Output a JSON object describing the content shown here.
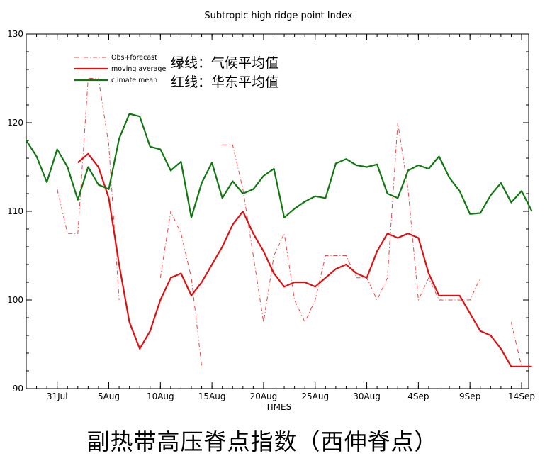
{
  "chart_data": {
    "type": "line",
    "title": "Subtropic high ridge point Index",
    "xlabel": "TIMES",
    "ylabel": "",
    "ylim": [
      90,
      130
    ],
    "yticks": [
      90,
      100,
      110,
      120,
      130
    ],
    "xlim": [
      0,
      48
    ],
    "xticks": [
      {
        "day": 3,
        "label": "31Jul"
      },
      {
        "day": 8,
        "label": "5Aug"
      },
      {
        "day": 13,
        "label": "10Aug"
      },
      {
        "day": 18,
        "label": "15Aug"
      },
      {
        "day": 23,
        "label": "20Aug"
      },
      {
        "day": 28,
        "label": "25Aug"
      },
      {
        "day": 33,
        "label": "30Aug"
      },
      {
        "day": 38,
        "label": "4Sep"
      },
      {
        "day": 43,
        "label": "9Sep"
      },
      {
        "day": 48,
        "label": "14Sep"
      }
    ],
    "legend_position": "top-left",
    "series": [
      {
        "name": "Obs+forecast",
        "color": "#ee4444",
        "style": "dash-dot",
        "points": [
          [
            3,
            112.5
          ],
          [
            4,
            107.5
          ],
          [
            5,
            107.5
          ],
          [
            6,
            125
          ],
          [
            7,
            125
          ],
          [
            8,
            117.5
          ],
          [
            9,
            100
          ],
          [
            10,
            null
          ],
          [
            11,
            null
          ],
          [
            12,
            null
          ],
          [
            13,
            102.5
          ],
          [
            14,
            110
          ],
          [
            15,
            107.5
          ],
          [
            16,
            102.5
          ],
          [
            17,
            92.5
          ],
          [
            18,
            null
          ],
          [
            19,
            117.5
          ],
          [
            20,
            117.5
          ],
          [
            21,
            112.5
          ],
          [
            22,
            105
          ],
          [
            23,
            97.5
          ],
          [
            24,
            105
          ],
          [
            25,
            107.5
          ],
          [
            26,
            100
          ],
          [
            27,
            97.5
          ],
          [
            28,
            100
          ],
          [
            29,
            105
          ],
          [
            30,
            105
          ],
          [
            31,
            105
          ],
          [
            32,
            102.5
          ],
          [
            33,
            102.5
          ],
          [
            34,
            100
          ],
          [
            35,
            102.5
          ],
          [
            36,
            120
          ],
          [
            37,
            112.5
          ],
          [
            38,
            100
          ],
          [
            39,
            102.5
          ],
          [
            40,
            100
          ],
          [
            41,
            100
          ],
          [
            42,
            100
          ],
          [
            43,
            100
          ],
          [
            44,
            102.5
          ],
          [
            45,
            null
          ],
          [
            46,
            null
          ],
          [
            47,
            97.5
          ],
          [
            48,
            92.5
          ]
        ]
      },
      {
        "name": "moving average",
        "color": "#dd1111",
        "style": "solid",
        "points": [
          [
            5,
            115.5
          ],
          [
            6,
            116.5
          ],
          [
            7,
            115
          ],
          [
            8,
            111.5
          ],
          [
            9,
            104
          ],
          [
            10,
            97.5
          ],
          [
            11,
            94.5
          ],
          [
            12,
            96.5
          ],
          [
            13,
            100
          ],
          [
            14,
            102.5
          ],
          [
            15,
            103
          ],
          [
            16,
            100.5
          ],
          [
            17,
            102
          ],
          [
            18,
            104
          ],
          [
            19,
            106
          ],
          [
            20,
            108.5
          ],
          [
            21,
            110
          ],
          [
            22,
            107.5
          ],
          [
            23,
            105.5
          ],
          [
            24,
            103
          ],
          [
            25,
            101.5
          ],
          [
            26,
            102
          ],
          [
            27,
            102
          ],
          [
            28,
            101.5
          ],
          [
            29,
            102.5
          ],
          [
            30,
            103.5
          ],
          [
            31,
            104
          ],
          [
            32,
            103
          ],
          [
            33,
            102.5
          ],
          [
            34,
            105.5
          ],
          [
            35,
            107.5
          ],
          [
            36,
            107
          ],
          [
            37,
            107.5
          ],
          [
            38,
            107
          ],
          [
            39,
            103
          ],
          [
            40,
            100.5
          ],
          [
            41,
            100.5
          ],
          [
            42,
            100.5
          ],
          [
            43,
            98.5
          ],
          [
            44,
            96.5
          ],
          [
            45,
            96
          ],
          [
            46,
            94.5
          ],
          [
            47,
            92.5
          ],
          [
            48,
            92.5
          ],
          [
            49,
            92.5
          ]
        ]
      },
      {
        "name": "climate mean",
        "color": "#117711",
        "style": "solid",
        "points": [
          [
            0,
            118
          ],
          [
            1,
            116.2
          ],
          [
            2,
            113.3
          ],
          [
            3,
            117
          ],
          [
            4,
            115
          ],
          [
            5,
            111.3
          ],
          [
            6,
            115
          ],
          [
            7,
            113
          ],
          [
            8,
            112.5
          ],
          [
            9,
            118.2
          ],
          [
            10,
            121
          ],
          [
            11,
            120.7
          ],
          [
            12,
            117.3
          ],
          [
            13,
            117
          ],
          [
            14,
            114.6
          ],
          [
            15,
            115.6
          ],
          [
            16,
            109.3
          ],
          [
            17,
            113.2
          ],
          [
            18,
            115.5
          ],
          [
            19,
            111.5
          ],
          [
            20,
            113.4
          ],
          [
            21,
            112
          ],
          [
            22,
            112.5
          ],
          [
            23,
            114
          ],
          [
            24,
            114.8
          ],
          [
            25,
            109.3
          ],
          [
            26,
            110.3
          ],
          [
            27,
            111.1
          ],
          [
            28,
            111.7
          ],
          [
            29,
            111.5
          ],
          [
            30,
            115.4
          ],
          [
            31,
            115.9
          ],
          [
            32,
            115.2
          ],
          [
            33,
            115
          ],
          [
            34,
            115.3
          ],
          [
            35,
            112
          ],
          [
            36,
            111.5
          ],
          [
            37,
            114.6
          ],
          [
            38,
            115.2
          ],
          [
            39,
            114.8
          ],
          [
            40,
            116.2
          ],
          [
            41,
            113.8
          ],
          [
            42,
            112.3
          ],
          [
            43,
            109.7
          ],
          [
            44,
            109.8
          ],
          [
            45,
            111.8
          ],
          [
            46,
            113.2
          ],
          [
            47,
            111
          ],
          [
            48,
            112.3
          ],
          [
            49,
            110
          ]
        ]
      }
    ],
    "annotations": [
      "绿线：气候平均值",
      "红线：华东平均值"
    ]
  },
  "caption": "副热带高压脊点指数（西伸脊点）"
}
